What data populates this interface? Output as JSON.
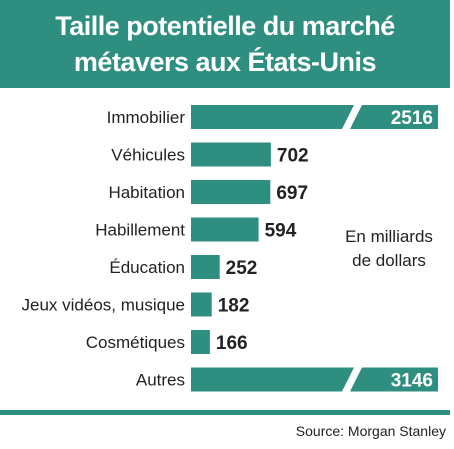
{
  "colors": {
    "accent": "#2e8f80",
    "text": "#222222"
  },
  "title_lines": [
    "Taille potentielle du marché",
    "métavers aux États-Unis"
  ],
  "note_lines": [
    "En milliards",
    "de dollars"
  ],
  "source": "Source: Morgan Stanley",
  "chart_data": {
    "type": "bar",
    "orientation": "horizontal",
    "title": "Taille potentielle du marché métavers aux États-Unis",
    "unit_note": "En milliards de dollars",
    "categories": [
      "Immobilier",
      "Véhicules",
      "Habitation",
      "Habillement",
      "Éducation",
      "Jeux vidéos, musique",
      "Cosmétiques",
      "Autres"
    ],
    "values": [
      2516,
      702,
      697,
      594,
      252,
      182,
      166,
      3146
    ],
    "broken_axis_bars": [
      "Immobilier",
      "Autres"
    ],
    "grid": false,
    "legend": "none"
  }
}
